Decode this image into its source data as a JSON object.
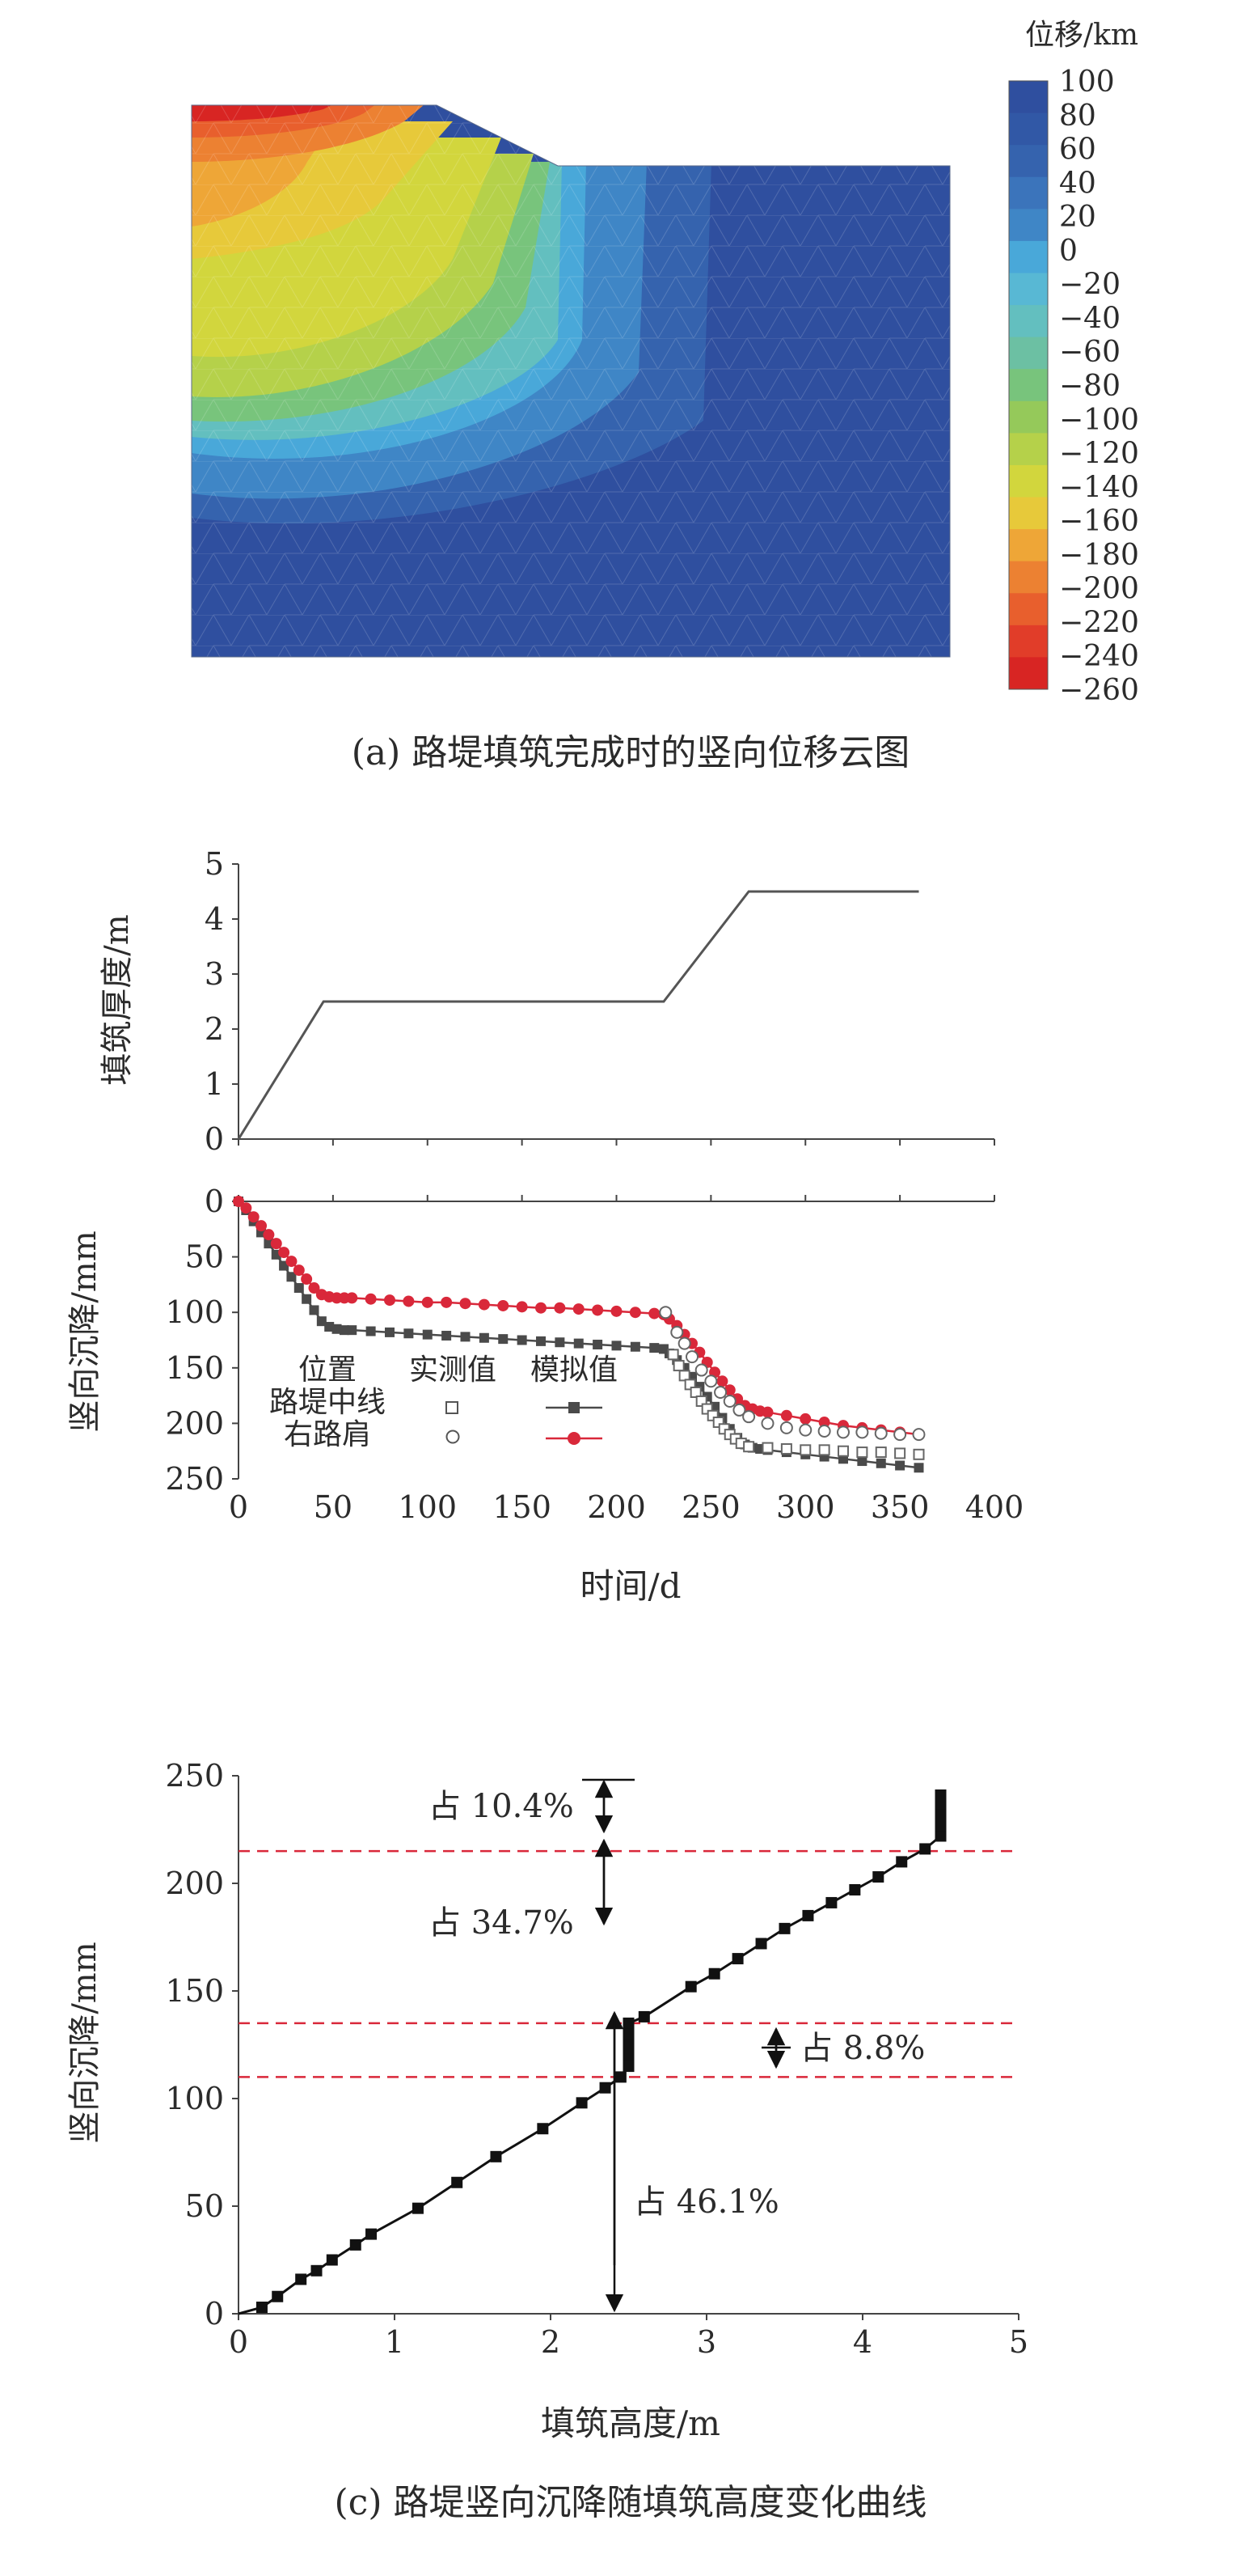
{
  "chart_data": [
    {
      "type": "heatmap",
      "caption": "(a) 路堤填筑完成时的竖向位移云图",
      "colorbar": {
        "title": "位移/km",
        "ticks": [
          "100",
          "80",
          "60",
          "40",
          "20",
          "0",
          "−20",
          "−40",
          "−60",
          "−80",
          "−100",
          "−120",
          "−140",
          "−160",
          "−180",
          "−200",
          "−220",
          "−240",
          "−260"
        ],
        "colors": [
          "#2f4f9f",
          "#3158a6",
          "#3563ae",
          "#3b74bb",
          "#3f86c6",
          "#49a8d9",
          "#58b8d4",
          "#63bfbf",
          "#6cc0a3",
          "#78c47c",
          "#95c95a",
          "#b5d14a",
          "#d2d63d",
          "#e7c93a",
          "#eea637",
          "#ec8132",
          "#e85f2d",
          "#e13d29",
          "#d82523"
        ]
      }
    },
    {
      "type": "line",
      "panel": "top",
      "ylabel": "填筑厚度/m",
      "yticks": [
        "5",
        "4",
        "3",
        "2",
        "1",
        "0"
      ],
      "ylim": [
        0,
        5
      ],
      "x": [
        0,
        45,
        225,
        270,
        360
      ],
      "y": [
        0,
        2.5,
        2.5,
        4.5,
        4.5
      ]
    },
    {
      "type": "scatter",
      "panel": "bottom",
      "ylabel": "竖向沉降/mm",
      "xlabel": "时间/d",
      "xticks": [
        "0",
        "50",
        "100",
        "150",
        "200",
        "250",
        "300",
        "350",
        "400"
      ],
      "yticks": [
        "0",
        "50",
        "100",
        "150",
        "200",
        "250"
      ],
      "xlim": [
        0,
        400
      ],
      "ylim": [
        0,
        250
      ],
      "legend": {
        "header_position": "位置",
        "header_measured": "实测值",
        "header_simulated": "模拟值",
        "row1": "路堤中线",
        "row2": "右路肩"
      },
      "colors": {
        "center_sim": "#4a4a4a",
        "shoulder_sim": "#d9283a"
      },
      "series": [
        {
          "name": "路堤中线-模拟值",
          "x": [
            0,
            4,
            8,
            12,
            16,
            20,
            24,
            28,
            32,
            36,
            40,
            44,
            48,
            52,
            56,
            60,
            70,
            80,
            90,
            100,
            110,
            120,
            130,
            140,
            150,
            160,
            170,
            180,
            190,
            200,
            210,
            220,
            225,
            228,
            232,
            236,
            240,
            244,
            248,
            252,
            256,
            260,
            264,
            268,
            272,
            276,
            280,
            290,
            300,
            310,
            320,
            330,
            340,
            350,
            360
          ],
          "y": [
            0,
            8,
            18,
            28,
            38,
            48,
            58,
            68,
            78,
            88,
            98,
            108,
            113,
            115,
            116,
            116,
            117,
            118,
            119,
            120,
            121,
            122,
            123,
            124,
            125,
            126,
            127,
            128,
            129,
            130,
            131,
            132,
            133,
            137,
            143,
            150,
            158,
            167,
            176,
            185,
            195,
            205,
            213,
            219,
            222,
            223,
            224,
            226,
            228,
            230,
            232,
            234,
            236,
            238,
            240
          ]
        },
        {
          "name": "右路肩-模拟值",
          "x": [
            0,
            4,
            8,
            12,
            16,
            20,
            24,
            28,
            32,
            36,
            40,
            44,
            48,
            52,
            56,
            60,
            70,
            80,
            90,
            100,
            110,
            120,
            130,
            140,
            150,
            160,
            170,
            180,
            190,
            200,
            210,
            220,
            225,
            228,
            232,
            236,
            240,
            244,
            248,
            252,
            256,
            260,
            264,
            268,
            272,
            276,
            280,
            290,
            300,
            310,
            320,
            330,
            340,
            350,
            360
          ],
          "y": [
            0,
            6,
            14,
            22,
            30,
            38,
            46,
            54,
            62,
            70,
            78,
            84,
            86,
            87,
            87,
            87,
            88,
            89,
            90,
            91,
            91,
            92,
            93,
            94,
            95,
            96,
            96,
            97,
            98,
            99,
            100,
            101,
            102,
            106,
            112,
            120,
            128,
            136,
            145,
            154,
            162,
            170,
            178,
            184,
            187,
            189,
            190,
            193,
            196,
            199,
            202,
            204,
            206,
            208,
            210
          ]
        },
        {
          "name": "路堤中线-实测值",
          "x": [
            230,
            233,
            236,
            239,
            242,
            245,
            248,
            251,
            254,
            257,
            260,
            263,
            266,
            270,
            280,
            290,
            300,
            310,
            320,
            330,
            340,
            350,
            360
          ],
          "y": [
            138,
            148,
            157,
            165,
            172,
            180,
            187,
            193,
            199,
            205,
            210,
            214,
            218,
            221,
            222,
            223,
            224,
            224,
            225,
            226,
            226,
            227,
            228
          ]
        },
        {
          "name": "右路肩-实测值",
          "x": [
            226,
            232,
            236,
            240,
            245,
            250,
            255,
            260,
            265,
            270,
            280,
            290,
            300,
            310,
            320,
            330,
            340,
            350,
            360
          ],
          "y": [
            100,
            118,
            128,
            140,
            152,
            162,
            172,
            180,
            188,
            194,
            200,
            204,
            206,
            207,
            208,
            208,
            209,
            210,
            210
          ]
        }
      ]
    },
    {
      "type": "scatter",
      "panel": "c",
      "caption": "(c) 路堤竖向沉降随填筑高度变化曲线",
      "xlabel": "填筑高度/m",
      "ylabel": "竖向沉降/mm",
      "xticks": [
        "0",
        "1",
        "2",
        "3",
        "4",
        "5"
      ],
      "yticks": [
        "0",
        "50",
        "100",
        "150",
        "200",
        "250"
      ],
      "xlim": [
        0,
        5
      ],
      "ylim": [
        0,
        250
      ],
      "reference_lines": [
        215,
        135,
        110
      ],
      "annotations": [
        "占 10.4%",
        "占 34.7%",
        "占 8.8%",
        "占 46.1%"
      ],
      "series": [
        {
          "name": "",
          "x": [
            0.15,
            0.25,
            0.4,
            0.5,
            0.6,
            0.75,
            0.85,
            1.15,
            1.4,
            1.65,
            1.95,
            2.2,
            2.35,
            2.45,
            2.5,
            2.5,
            2.5,
            2.5,
            2.5,
            2.5,
            2.6,
            2.9,
            3.05,
            3.2,
            3.35,
            3.5,
            3.65,
            3.8,
            3.95,
            4.1,
            4.25,
            4.4,
            4.5,
            4.5,
            4.5,
            4.5,
            4.5
          ],
          "y": [
            3,
            8,
            16,
            20,
            25,
            32,
            37,
            49,
            61,
            73,
            86,
            98,
            105,
            110,
            115,
            120,
            125,
            130,
            134,
            135,
            138,
            152,
            158,
            165,
            172,
            179,
            185,
            191,
            197,
            203,
            210,
            216,
            222,
            227,
            232,
            237,
            241
          ]
        }
      ]
    }
  ]
}
